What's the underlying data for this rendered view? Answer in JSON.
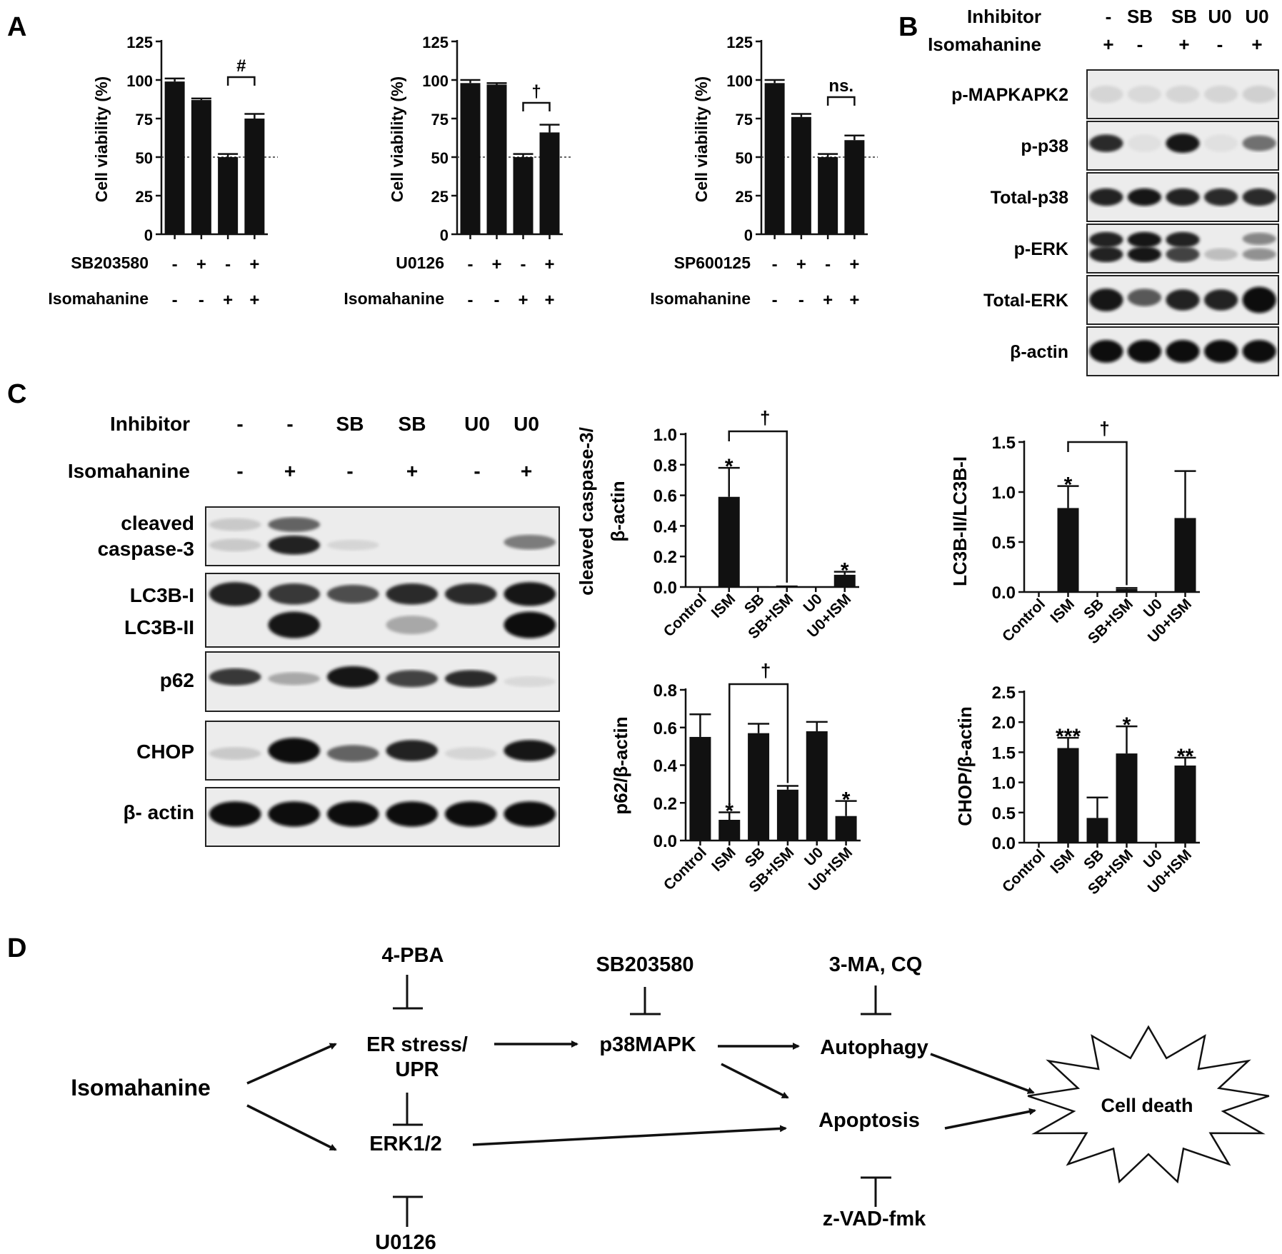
{
  "panel_labels": {
    "a": "A",
    "b": "B",
    "c": "C",
    "d": "D"
  },
  "panel_a": {
    "ylabel": "Cell viability (%)",
    "yticks": [
      "0",
      "25",
      "50",
      "75",
      "100",
      "125"
    ],
    "row2_label": "Isomahanine",
    "charts": [
      {
        "inhibitor": "SB203580",
        "inh_signs": [
          "-",
          "+",
          "-",
          "+"
        ],
        "ism_signs": [
          "-",
          "-",
          "+",
          "+"
        ],
        "stars": [
          "",
          "",
          "***",
          "***"
        ],
        "bracket_label": "#"
      },
      {
        "inhibitor": "U0126",
        "inh_signs": [
          "-",
          "+",
          "-",
          "+"
        ],
        "ism_signs": [
          "-",
          "-",
          "+",
          "+"
        ],
        "stars": [
          "",
          "",
          "***",
          "***"
        ],
        "bracket_label": "†"
      },
      {
        "inhibitor": "SP600125",
        "inh_signs": [
          "-",
          "+",
          "-",
          "+"
        ],
        "ism_signs": [
          "-",
          "-",
          "+",
          "+"
        ],
        "stars": [
          "",
          "",
          "***",
          "***"
        ],
        "bracket_label": "ns."
      }
    ]
  },
  "panel_b": {
    "row_labels": [
      "Inhibitor",
      "Isomahanine"
    ],
    "inhibitor": [
      "-",
      "SB",
      "SB",
      "U0",
      "U0"
    ],
    "isomahanine": [
      "+",
      "-",
      "+",
      "-",
      "+"
    ],
    "blots": [
      "p-MAPKAPK2",
      "p-p38",
      "Total-p38",
      "p-ERK",
      "Total-ERK",
      "β-actin"
    ]
  },
  "panel_c": {
    "row_labels": [
      "Inhibitor",
      "Isomahanine"
    ],
    "inhibitor": [
      "-",
      "-",
      "SB",
      "SB",
      "U0",
      "U0"
    ],
    "isomahanine": [
      "-",
      "+",
      "-",
      "+",
      "-",
      "+"
    ],
    "blots": [
      "cleaved",
      "caspase-3",
      "LC3B-I",
      "LC3B-II",
      "p62",
      "CHOP",
      "β- actin"
    ],
    "bar_categories": [
      "Control",
      "ISM",
      "SB",
      "SB+ISM",
      "U0",
      "U0+ISM"
    ]
  },
  "panel_d": {
    "nodes": {
      "isomahanine": "Isomahanine",
      "er_stress_1": "ER stress/",
      "er_stress_2": "UPR",
      "erk": "ERK1/2",
      "p38": "p38MAPK",
      "autophagy": "Autophagy",
      "apoptosis": "Apoptosis",
      "cell_death": "Cell death"
    },
    "inhibitors": {
      "pba": "4-PBA",
      "sb": "SB203580",
      "ma_cq": "3-MA, CQ",
      "u0126": "U0126",
      "zvad": "z-VAD-fmk"
    }
  },
  "chart_data": [
    {
      "type": "bar",
      "panel": "A",
      "chart": "SB203580",
      "ylabel": "Cell viability (%)",
      "ylim": [
        0,
        125
      ],
      "categories": [
        "-/-",
        "+/-",
        "-/+",
        "+/+"
      ],
      "values": [
        99,
        87,
        50,
        75
      ],
      "errors": [
        2,
        1,
        2,
        3
      ],
      "reference_line": 50
    },
    {
      "type": "bar",
      "panel": "A",
      "chart": "U0126",
      "ylabel": "Cell viability (%)",
      "ylim": [
        0,
        125
      ],
      "categories": [
        "-/-",
        "+/-",
        "-/+",
        "+/+"
      ],
      "values": [
        98,
        97,
        50,
        66
      ],
      "errors": [
        2,
        1,
        2,
        5
      ],
      "reference_line": 50
    },
    {
      "type": "bar",
      "panel": "A",
      "chart": "SP600125",
      "ylabel": "Cell viability (%)",
      "ylim": [
        0,
        125
      ],
      "categories": [
        "-/-",
        "+/-",
        "-/+",
        "+/+"
      ],
      "values": [
        98,
        76,
        50,
        61
      ],
      "errors": [
        2,
        2,
        2,
        3
      ],
      "reference_line": 50
    },
    {
      "type": "bar",
      "panel": "C",
      "chart": "cleaved caspase-3",
      "ylabel": "cleaved caspase-3/ β-actin",
      "yticks": [
        "0.0",
        "0.2",
        "0.4",
        "0.6",
        "0.8",
        "1.0"
      ],
      "ylim": [
        0,
        1.0
      ],
      "categories": [
        "Control",
        "ISM",
        "SB",
        "SB+ISM",
        "U0",
        "U0+ISM"
      ],
      "values": [
        0.0,
        0.59,
        0.005,
        0.01,
        0.0,
        0.08
      ],
      "errors": [
        0,
        0.19,
        0,
        0,
        0,
        0.02
      ],
      "stars": [
        "",
        "*",
        "",
        "",
        "",
        "*"
      ],
      "bracket_label": "†",
      "bracket": [
        1,
        3
      ]
    },
    {
      "type": "bar",
      "panel": "C",
      "chart": "LC3B",
      "ylabel": "LC3B-II/LC3B-I",
      "yticks": [
        "0.0",
        "0.5",
        "1.0",
        "1.5"
      ],
      "ylim": [
        0,
        1.5
      ],
      "categories": [
        "Control",
        "ISM",
        "SB",
        "SB+ISM",
        "U0",
        "U0+ISM"
      ],
      "values": [
        0.0,
        0.84,
        0.0,
        0.03,
        0.0,
        0.74
      ],
      "errors": [
        0,
        0.22,
        0,
        0.01,
        0,
        0.47
      ],
      "stars": [
        "",
        "*",
        "",
        "",
        "",
        ""
      ],
      "bracket_label": "†",
      "bracket": [
        1,
        3
      ]
    },
    {
      "type": "bar",
      "panel": "C",
      "chart": "p62",
      "ylabel": "p62/β-actin",
      "yticks": [
        "0.0",
        "0.2",
        "0.4",
        "0.6",
        "0.8"
      ],
      "ylim": [
        0,
        0.8
      ],
      "categories": [
        "Control",
        "ISM",
        "SB",
        "SB+ISM",
        "U0",
        "U0+ISM"
      ],
      "values": [
        0.55,
        0.11,
        0.57,
        0.27,
        0.58,
        0.13
      ],
      "errors": [
        0.12,
        0.04,
        0.05,
        0.02,
        0.05,
        0.08
      ],
      "stars": [
        "",
        "*",
        "",
        "",
        "",
        "*"
      ],
      "bracket_label": "†",
      "bracket": [
        1,
        3
      ]
    },
    {
      "type": "bar",
      "panel": "C",
      "chart": "CHOP",
      "ylabel": "CHOP/β-actin",
      "yticks": [
        "0.0",
        "0.5",
        "1.0",
        "1.5",
        "2.0",
        "2.5"
      ],
      "ylim": [
        0,
        2.5
      ],
      "categories": [
        "Control",
        "ISM",
        "SB",
        "SB+ISM",
        "U0",
        "U0+ISM"
      ],
      "values": [
        0.0,
        1.57,
        0.41,
        1.48,
        0.0,
        1.28
      ],
      "errors": [
        0,
        0.17,
        0.34,
        0.45,
        0,
        0.13
      ],
      "stars": [
        "",
        "***",
        "",
        "*",
        "",
        "**"
      ]
    }
  ]
}
